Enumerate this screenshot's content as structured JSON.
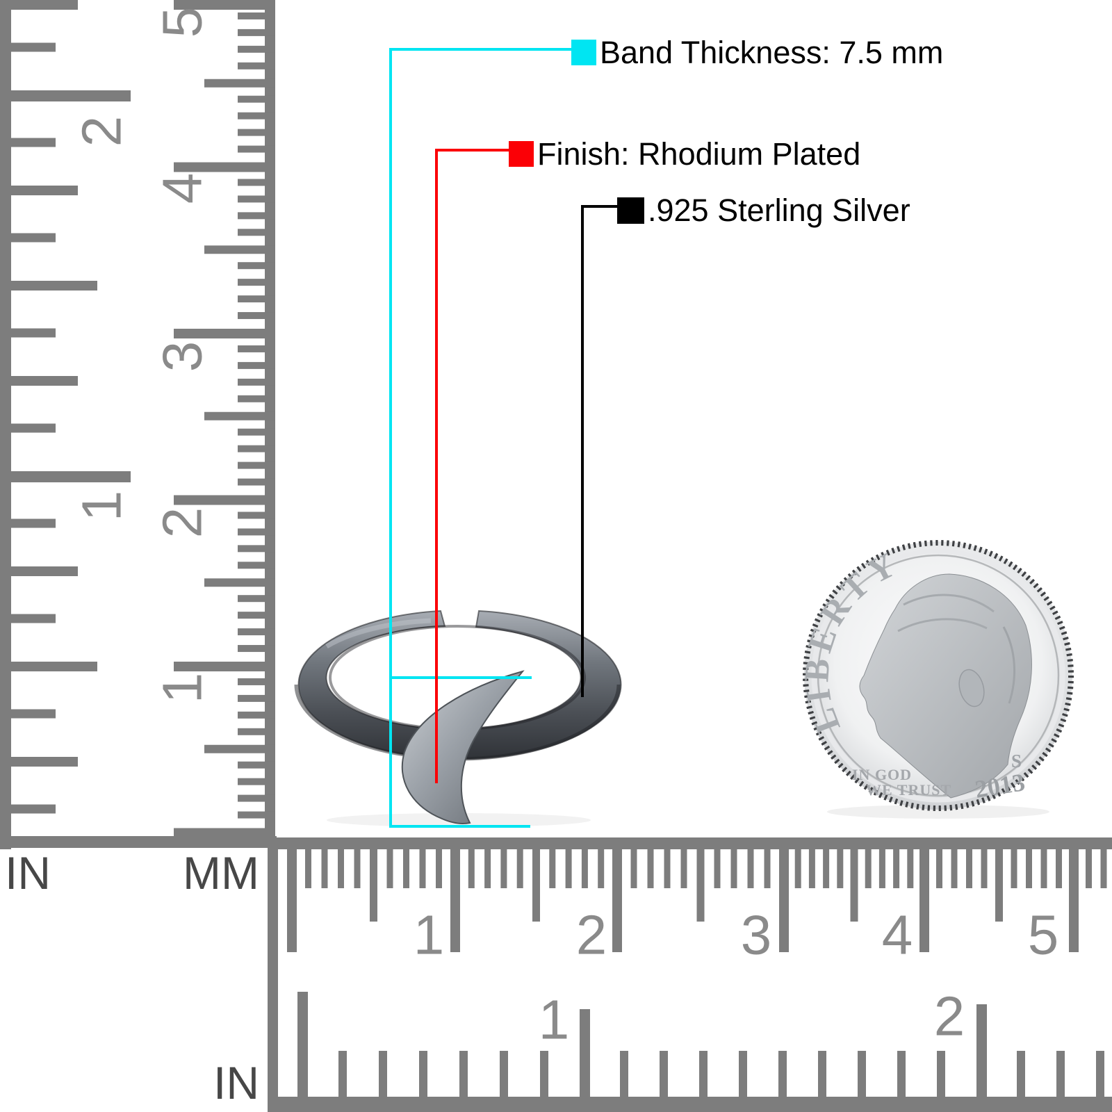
{
  "annotations": {
    "band_thickness": {
      "label": "Band Thickness: 7.5 mm",
      "color": "#00e5f2"
    },
    "finish": {
      "label": "Finish: Rhodium Plated",
      "color": "#fb0006"
    },
    "material": {
      "label": ".925 Sterling Silver",
      "color": "#000000"
    }
  },
  "left_ruler": {
    "in_numbers": [
      "2",
      "1"
    ],
    "mm_numbers": [
      "5",
      "4",
      "3",
      "2",
      "1"
    ],
    "in_unit": "IN",
    "mm_unit": "MM"
  },
  "bottom_ruler": {
    "mm_numbers": [
      "1",
      "2",
      "3",
      "4",
      "5"
    ],
    "in_numbers": [
      "1",
      "2"
    ],
    "in_unit": "IN"
  },
  "coin": {
    "legend": "LIBERTY",
    "motto_line1": "IN GOD",
    "motto_line2": "WE TRUST",
    "mint_mark": "S",
    "year": "2013"
  },
  "colors": {
    "annotation_cyan": "#00e5f2",
    "annotation_red": "#fb0006",
    "annotation_black": "#000000",
    "ruler_gray": "#7d7d7d",
    "number_gray": "#8a8a8a",
    "ring_metal": "#5a5f66",
    "coin_silver": "#d9dbdd"
  }
}
